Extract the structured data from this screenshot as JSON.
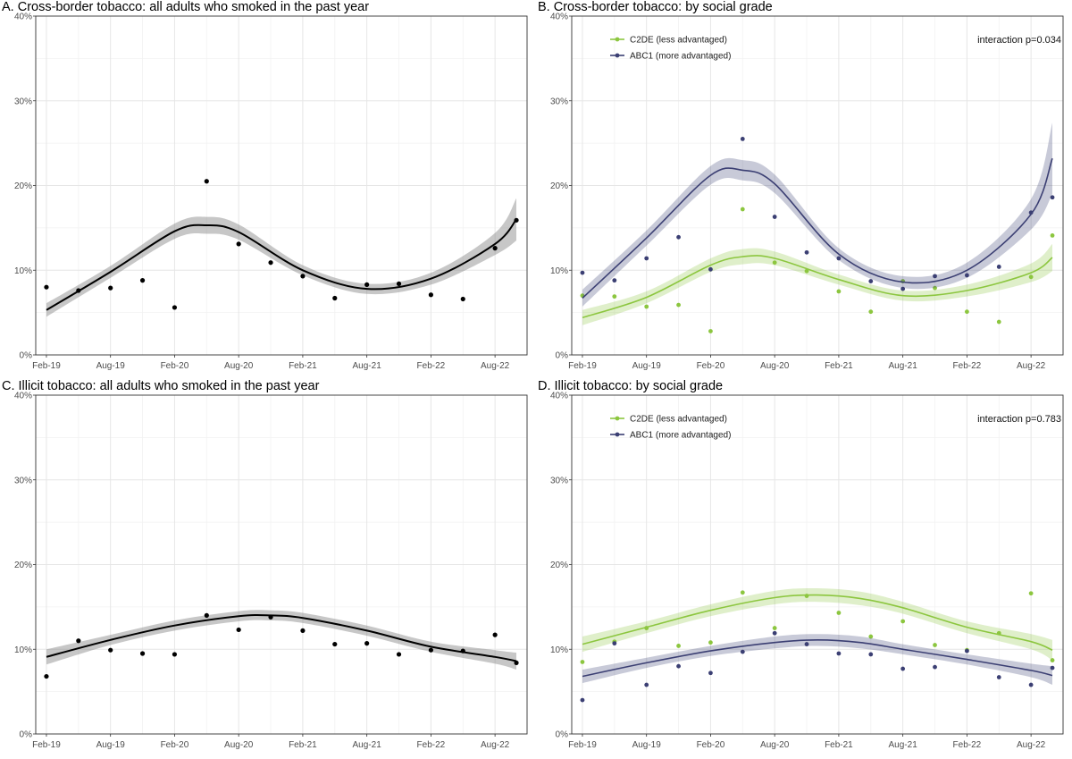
{
  "chart_data": [
    {
      "id": "A",
      "type": "scatter",
      "title": "A. Cross-border tobacco: all adults who smoked in the past year",
      "x_ticks": [
        "Feb-19",
        "Aug-19",
        "Feb-20",
        "Aug-20",
        "Feb-21",
        "Aug-21",
        "Feb-22",
        "Aug-22"
      ],
      "y_ticks": [
        "0%",
        "10%",
        "20%",
        "30%",
        "40%"
      ],
      "ylim": [
        0,
        40
      ],
      "xlim": [
        "2019-01",
        "2022-11"
      ],
      "grid": true,
      "annotation": "",
      "series": [
        {
          "color": "#000000",
          "points": {
            "x": [
              "2019-02",
              "2019-05",
              "2019-08",
              "2019-11",
              "2020-02",
              "2020-05",
              "2020-08",
              "2020-11",
              "2021-02",
              "2021-05",
              "2021-08",
              "2021-11",
              "2022-02",
              "2022-05",
              "2022-08",
              "2022-10"
            ],
            "y": [
              8.0,
              7.6,
              7.9,
              8.8,
              5.6,
              20.5,
              13.1,
              10.9,
              9.3,
              6.7,
              8.3,
              8.4,
              7.1,
              6.6,
              12.6,
              15.9
            ]
          },
          "fit": {
            "x": [
              "2019-02",
              "2019-08",
              "2020-02",
              "2020-05",
              "2020-08",
              "2021-02",
              "2021-08",
              "2022-02",
              "2022-08",
              "2022-10"
            ],
            "y": [
              5.3,
              9.8,
              14.6,
              15.3,
              14.5,
              10.0,
              7.8,
              9.0,
              13.1,
              16.0
            ]
          },
          "ci_halfwidth": [
            0.8,
            0.7,
            0.9,
            1.0,
            0.9,
            0.6,
            0.6,
            0.7,
            1.3,
            2.5
          ]
        }
      ]
    },
    {
      "id": "B",
      "type": "scatter",
      "title": "B. Cross-border tobacco: by social grade",
      "x_ticks": [
        "Feb-19",
        "Aug-19",
        "Feb-20",
        "Aug-20",
        "Feb-21",
        "Aug-21",
        "Feb-22",
        "Aug-22"
      ],
      "y_ticks": [
        "0%",
        "10%",
        "20%",
        "30%",
        "40%"
      ],
      "ylim": [
        0,
        40
      ],
      "xlim": [
        "2019-01",
        "2022-11"
      ],
      "grid": true,
      "legend": "top-left",
      "annotation": "interaction p=0.034",
      "series": [
        {
          "name": "C2DE (less advantaged)",
          "color": "#8CC63F",
          "points": {
            "x": [
              "2019-02",
              "2019-05",
              "2019-08",
              "2019-11",
              "2020-02",
              "2020-05",
              "2020-08",
              "2020-11",
              "2021-02",
              "2021-05",
              "2021-08",
              "2021-11",
              "2022-02",
              "2022-05",
              "2022-08",
              "2022-10"
            ],
            "y": [
              7.0,
              6.9,
              5.7,
              5.9,
              2.8,
              17.2,
              10.9,
              9.9,
              7.5,
              5.1,
              8.7,
              7.9,
              5.1,
              3.9,
              9.2,
              14.1
            ]
          },
          "fit": {
            "x": [
              "2019-02",
              "2019-08",
              "2020-02",
              "2020-05",
              "2020-08",
              "2021-02",
              "2021-08",
              "2022-02",
              "2022-08",
              "2022-10"
            ],
            "y": [
              4.4,
              6.8,
              10.6,
              11.6,
              11.4,
              8.9,
              7.0,
              7.6,
              9.7,
              11.5
            ]
          },
          "ci_halfwidth": [
            0.9,
            0.7,
            0.8,
            0.9,
            0.8,
            0.6,
            0.6,
            0.7,
            1.1,
            1.6
          ]
        },
        {
          "name": "ABC1 (more advantaged)",
          "color": "#3B3F73",
          "points": {
            "x": [
              "2019-02",
              "2019-05",
              "2019-08",
              "2019-11",
              "2020-02",
              "2020-05",
              "2020-08",
              "2020-11",
              "2021-02",
              "2021-05",
              "2021-08",
              "2021-11",
              "2022-02",
              "2022-05",
              "2022-08",
              "2022-10"
            ],
            "y": [
              9.7,
              8.8,
              11.4,
              13.9,
              10.1,
              25.5,
              16.3,
              12.1,
              11.4,
              8.7,
              7.8,
              9.3,
              9.4,
              10.4,
              16.8,
              18.6
            ]
          },
          "fit": {
            "x": [
              "2019-02",
              "2019-08",
              "2020-02",
              "2020-05",
              "2020-08",
              "2021-02",
              "2021-08",
              "2022-02",
              "2022-08",
              "2022-10"
            ],
            "y": [
              6.7,
              13.8,
              21.2,
              21.8,
              20.2,
              11.9,
              8.6,
              10.0,
              16.6,
              23.2
            ]
          },
          "ci_halfwidth": [
            1.0,
            0.9,
            1.1,
            1.2,
            1.1,
            0.7,
            0.7,
            0.9,
            1.8,
            4.2
          ]
        }
      ]
    },
    {
      "id": "C",
      "type": "scatter",
      "title": "C. Illicit tobacco: all adults who smoked in the past year",
      "x_ticks": [
        "Feb-19",
        "Aug-19",
        "Feb-20",
        "Aug-20",
        "Feb-21",
        "Aug-21",
        "Feb-22",
        "Aug-22"
      ],
      "y_ticks": [
        "0%",
        "10%",
        "20%",
        "30%",
        "40%"
      ],
      "ylim": [
        0,
        40
      ],
      "xlim": [
        "2019-01",
        "2022-11"
      ],
      "grid": true,
      "annotation": "",
      "series": [
        {
          "color": "#000000",
          "points": {
            "x": [
              "2019-02",
              "2019-05",
              "2019-08",
              "2019-11",
              "2020-02",
              "2020-05",
              "2020-08",
              "2020-11",
              "2021-02",
              "2021-05",
              "2021-08",
              "2021-11",
              "2022-02",
              "2022-05",
              "2022-08",
              "2022-10"
            ],
            "y": [
              6.8,
              11.0,
              9.9,
              9.5,
              9.4,
              14.0,
              12.3,
              13.8,
              12.2,
              10.6,
              10.7,
              9.4,
              9.9,
              9.8,
              11.7,
              8.4
            ]
          },
          "fit": {
            "x": [
              "2019-02",
              "2019-08",
              "2020-02",
              "2020-08",
              "2020-11",
              "2021-02",
              "2021-08",
              "2022-02",
              "2022-08",
              "2022-10"
            ],
            "y": [
              9.1,
              11.1,
              12.8,
              13.9,
              14.0,
              13.7,
              12.2,
              10.3,
              9.1,
              8.6
            ]
          },
          "ci_halfwidth": [
            0.9,
            0.6,
            0.6,
            0.6,
            0.6,
            0.6,
            0.6,
            0.6,
            0.8,
            1.0
          ]
        }
      ]
    },
    {
      "id": "D",
      "type": "scatter",
      "title": "D. Illicit tobacco: by social grade",
      "x_ticks": [
        "Feb-19",
        "Aug-19",
        "Feb-20",
        "Aug-20",
        "Feb-21",
        "Aug-21",
        "Feb-22",
        "Aug-22"
      ],
      "y_ticks": [
        "0%",
        "10%",
        "20%",
        "30%",
        "40%"
      ],
      "ylim": [
        0,
        40
      ],
      "xlim": [
        "2019-01",
        "2022-11"
      ],
      "grid": true,
      "legend": "top-left",
      "annotation": "interaction p=0.783",
      "series": [
        {
          "name": "C2DE (less advantaged)",
          "color": "#8CC63F",
          "points": {
            "x": [
              "2019-02",
              "2019-05",
              "2019-08",
              "2019-11",
              "2020-02",
              "2020-05",
              "2020-08",
              "2020-11",
              "2021-02",
              "2021-05",
              "2021-08",
              "2021-11",
              "2022-02",
              "2022-05",
              "2022-08",
              "2022-10"
            ],
            "y": [
              8.5,
              10.9,
              12.5,
              10.4,
              10.8,
              16.7,
              12.5,
              16.3,
              14.3,
              11.5,
              13.3,
              10.5,
              9.9,
              11.9,
              16.6,
              8.7
            ]
          },
          "fit": {
            "x": [
              "2019-02",
              "2019-08",
              "2020-02",
              "2020-08",
              "2020-12",
              "2021-04",
              "2021-08",
              "2022-02",
              "2022-08",
              "2022-10"
            ],
            "y": [
              10.6,
              12.6,
              14.6,
              16.1,
              16.4,
              16.0,
              14.9,
              12.6,
              10.9,
              9.9
            ]
          },
          "ci_halfwidth": [
            0.9,
            0.7,
            0.7,
            0.8,
            0.8,
            0.8,
            0.7,
            0.7,
            0.9,
            1.2
          ]
        },
        {
          "name": "ABC1 (more advantaged)",
          "color": "#3B3F73",
          "points": {
            "x": [
              "2019-02",
              "2019-05",
              "2019-08",
              "2019-11",
              "2020-02",
              "2020-05",
              "2020-08",
              "2020-11",
              "2021-02",
              "2021-05",
              "2021-08",
              "2021-11",
              "2022-02",
              "2022-05",
              "2022-08",
              "2022-10"
            ],
            "y": [
              4.0,
              10.7,
              5.8,
              8.0,
              7.2,
              9.7,
              11.9,
              10.6,
              9.5,
              9.4,
              7.7,
              7.9,
              9.8,
              6.7,
              5.8,
              7.8
            ]
          },
          "fit": {
            "x": [
              "2019-02",
              "2019-08",
              "2020-02",
              "2020-08",
              "2020-12",
              "2021-04",
              "2021-08",
              "2022-02",
              "2022-08",
              "2022-10"
            ],
            "y": [
              6.8,
              8.4,
              9.8,
              10.8,
              11.1,
              10.8,
              10.0,
              8.8,
              7.5,
              6.9
            ]
          },
          "ci_halfwidth": [
            0.8,
            0.6,
            0.6,
            0.7,
            0.7,
            0.7,
            0.6,
            0.6,
            0.8,
            1.1
          ]
        }
      ]
    }
  ]
}
